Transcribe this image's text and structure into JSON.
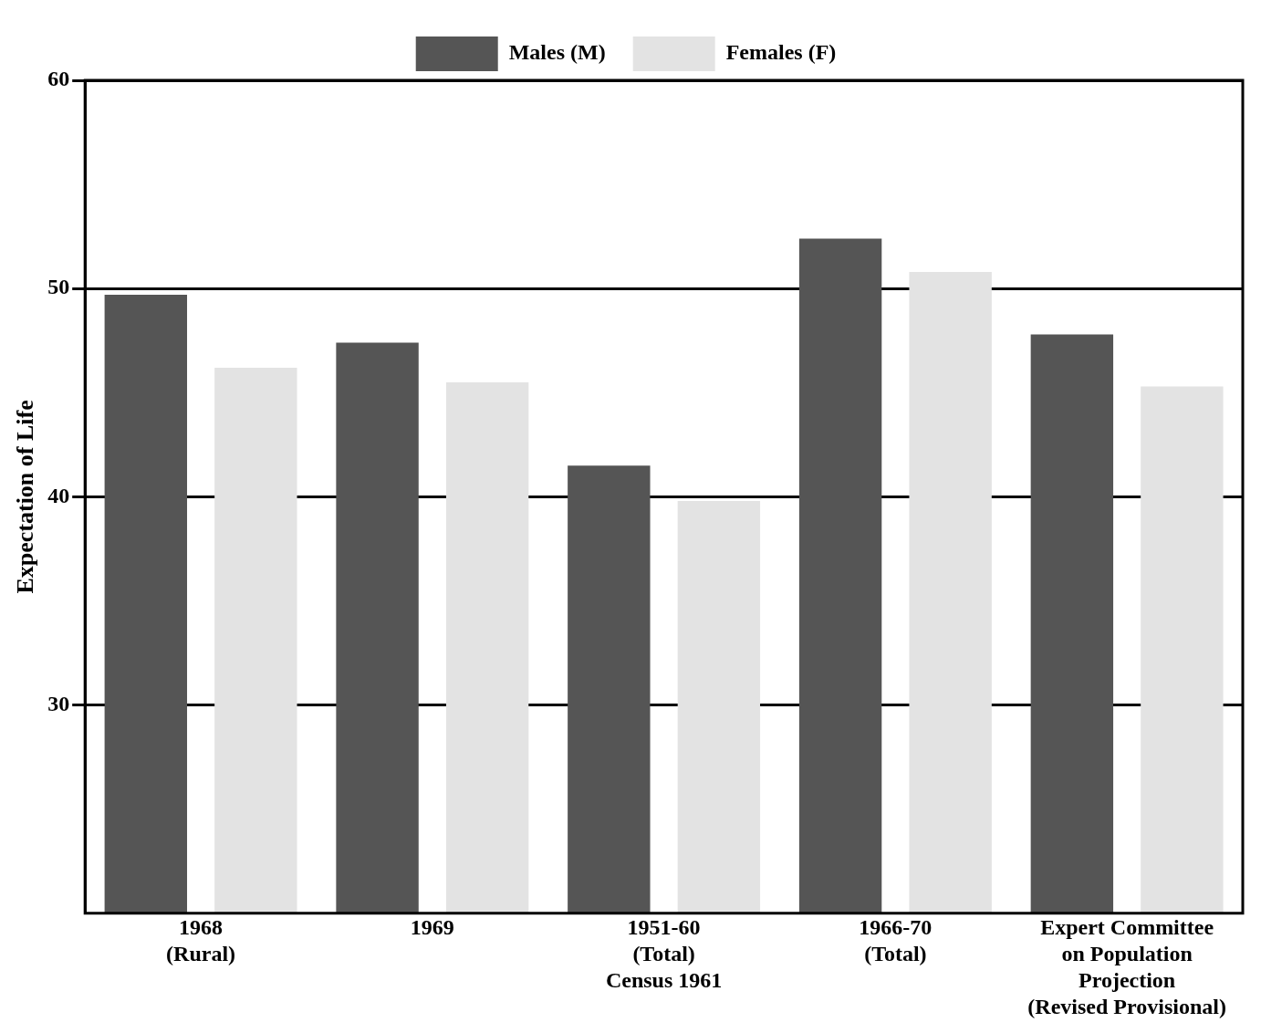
{
  "chart_data": {
    "type": "bar",
    "ylabel": "Expectation of Life",
    "categories": [
      "1968\n(Rural)",
      "1969",
      "1951-60\n(Total)\nCensus 1961",
      "1966-70\n(Total)",
      "Expert Committee\non Population\nProjection\n(Revised Provisional)"
    ],
    "series": [
      {
        "name": "Males (M)",
        "color": "#555555",
        "values": [
          49.7,
          47.4,
          41.5,
          52.4,
          47.8
        ]
      },
      {
        "name": "Females (F)",
        "color": "#e3e3e3",
        "values": [
          46.2,
          45.5,
          39.8,
          50.8,
          45.3
        ]
      }
    ],
    "ylim": [
      20,
      60
    ],
    "yticks": [
      30,
      40,
      50,
      60
    ],
    "grid": "y",
    "legend": "top"
  }
}
